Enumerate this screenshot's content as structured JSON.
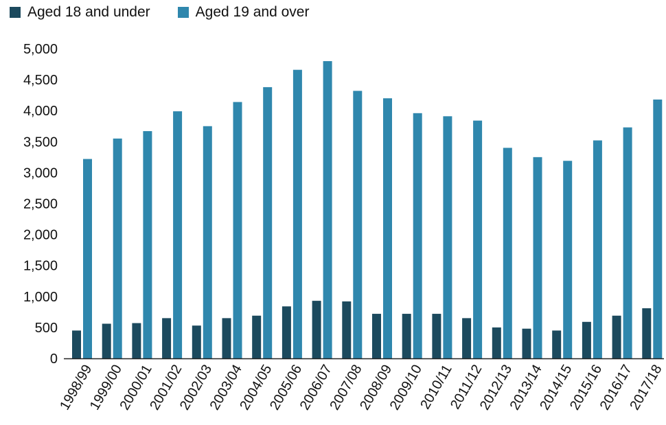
{
  "chart_data": {
    "type": "bar",
    "categories": [
      "1998/99",
      "1999/00",
      "2000/01",
      "2001/02",
      "2002/03",
      "2003/04",
      "2004/05",
      "2005/06",
      "2006/07",
      "2007/08",
      "2008/09",
      "2009/10",
      "2010/11",
      "2011/12",
      "2012/13",
      "2013/14",
      "2014/15",
      "2015/16",
      "2016/17",
      "2017/18"
    ],
    "series": [
      {
        "name": "Aged 18 and under",
        "color": "#1c4a5e",
        "values": [
          450,
          560,
          570,
          650,
          530,
          650,
          690,
          840,
          930,
          920,
          720,
          720,
          720,
          650,
          500,
          480,
          450,
          590,
          690,
          810
        ]
      },
      {
        "name": "Aged 19 and over",
        "color": "#2f87ad",
        "values": [
          3220,
          3550,
          3670,
          3990,
          3750,
          4140,
          4380,
          4660,
          4800,
          4320,
          4200,
          3960,
          3910,
          3840,
          3400,
          3250,
          3190,
          3520,
          3730,
          4180
        ]
      }
    ],
    "yticks": [
      "0",
      "500",
      "1,000",
      "1,500",
      "2,000",
      "2,500",
      "3,000",
      "3,500",
      "4,000",
      "4,500",
      "5,000"
    ],
    "ylim": [
      0,
      5000
    ],
    "grid": false,
    "legend_position": "top-left",
    "title": "",
    "xlabel": "",
    "ylabel": ""
  }
}
